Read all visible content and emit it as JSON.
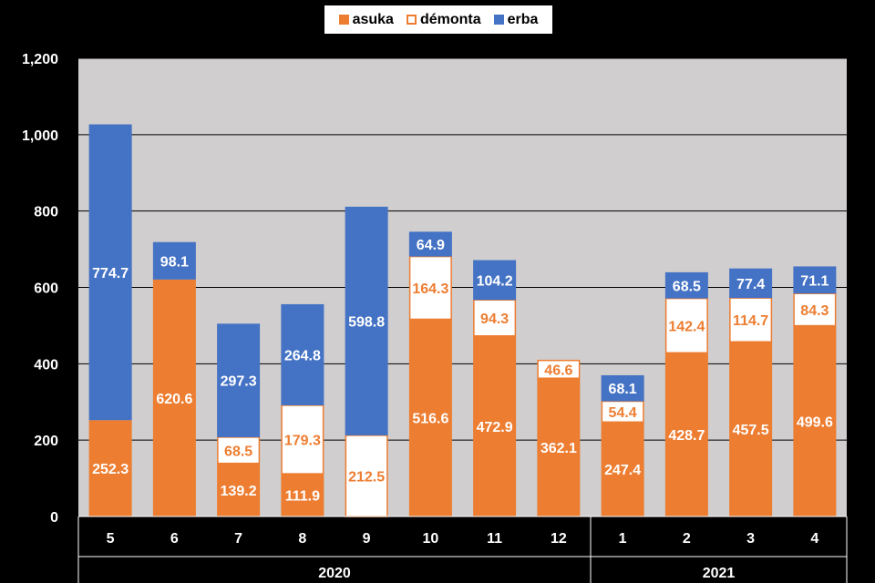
{
  "chart_data": {
    "type": "bar",
    "stacked": true,
    "categories": [
      "5",
      "6",
      "7",
      "8",
      "9",
      "10",
      "11",
      "12",
      "1",
      "2",
      "3",
      "4"
    ],
    "groups": [
      {
        "label": "2020",
        "categories": [
          "5",
          "6",
          "7",
          "8",
          "9",
          "10",
          "11",
          "12"
        ]
      },
      {
        "label": "2021",
        "categories": [
          "1",
          "2",
          "3",
          "4"
        ]
      }
    ],
    "series": [
      {
        "name": "asuka",
        "color": "#ED7D31",
        "style": "filled",
        "values": [
          252.3,
          620.6,
          139.2,
          111.9,
          null,
          516.6,
          472.9,
          362.1,
          247.4,
          428.7,
          457.5,
          499.6
        ]
      },
      {
        "name": "démonta",
        "color": "#ED7D31",
        "style": "outline",
        "values": [
          null,
          null,
          68.5,
          179.3,
          212.5,
          164.3,
          94.3,
          46.6,
          54.4,
          142.4,
          114.7,
          84.3
        ]
      },
      {
        "name": "erba",
        "color": "#4472C4",
        "style": "filled",
        "values": [
          774.7,
          98.1,
          297.3,
          264.8,
          598.8,
          64.9,
          104.2,
          null,
          68.1,
          68.5,
          77.4,
          71.1
        ]
      }
    ],
    "y_ticks": [
      "0",
      "200",
      "400",
      "600",
      "800",
      "1,000",
      "1,200"
    ],
    "ylim": [
      0,
      1200
    ],
    "grid": true,
    "legend_position": "top-center",
    "plot_background": "#D0CECE"
  }
}
